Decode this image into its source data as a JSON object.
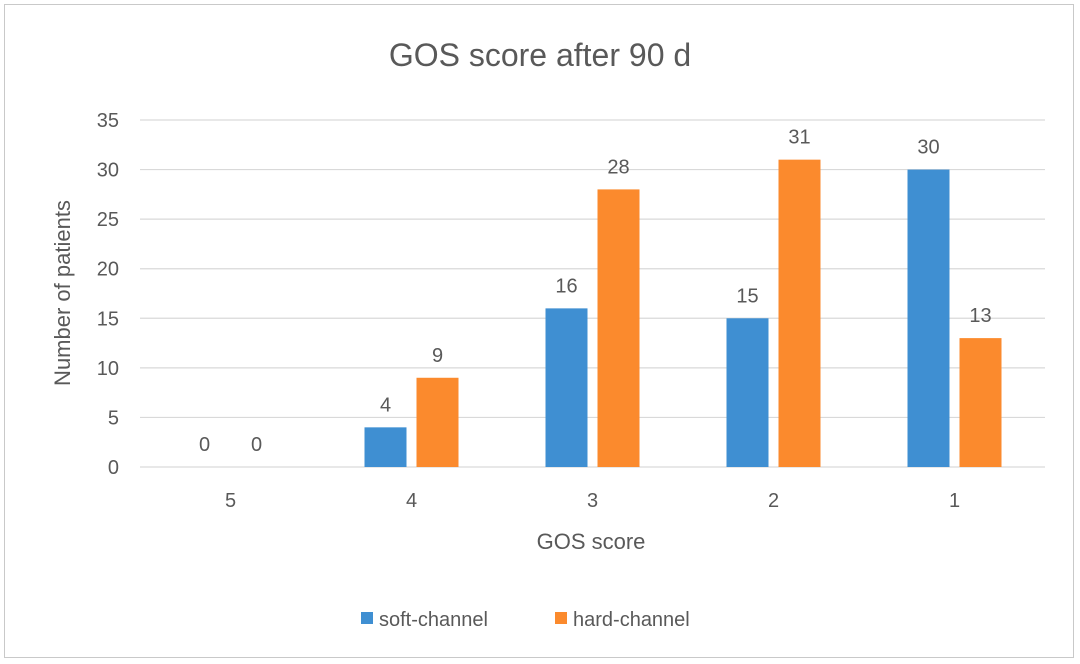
{
  "chart_data": {
    "type": "bar",
    "title": "GOS score after 90 d",
    "xlabel": "GOS score",
    "ylabel": "Number of patients",
    "categories": [
      "5",
      "4",
      "3",
      "2",
      "1"
    ],
    "series": [
      {
        "name": "soft-channel",
        "values": [
          0,
          4,
          16,
          15,
          30
        ]
      },
      {
        "name": "hard-channel",
        "values": [
          0,
          9,
          28,
          31,
          13
        ]
      }
    ],
    "ylim": [
      0,
      35
    ],
    "yticks": [
      0,
      5,
      10,
      15,
      20,
      25,
      30,
      35
    ],
    "grid": true,
    "legend_position": "bottom",
    "data_labels": true
  },
  "colors": {
    "soft-channel": "#3f8fd2",
    "hard-channel": "#fb8a2d",
    "grid": "#d9d9d9",
    "text": "#595959"
  }
}
